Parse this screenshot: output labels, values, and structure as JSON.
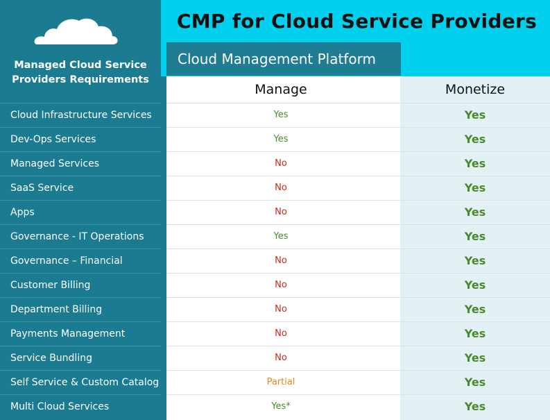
{
  "title": "CMP for Cloud Service Providers",
  "platform_label": "Cloud Management Platform",
  "sidebar": {
    "heading_line1": "Managed Cloud Service",
    "heading_line2": "Providers Requirements"
  },
  "columns": {
    "manage": "Manage",
    "monetize": "Monetize"
  },
  "colors": {
    "yes": "#4a8a2a",
    "no": "#d0281c",
    "partial": "#e08a1e",
    "accent": "#00cfee",
    "sidebar": "#1b7b91"
  },
  "rows": [
    {
      "requirement": "Cloud Infrastructure Services",
      "manage": "Yes",
      "monetize": "Yes"
    },
    {
      "requirement": "Dev-Ops Services",
      "manage": "Yes",
      "monetize": "Yes"
    },
    {
      "requirement": "Managed Services",
      "manage": "No",
      "monetize": "Yes"
    },
    {
      "requirement": "SaaS Service",
      "manage": "No",
      "monetize": "Yes"
    },
    {
      "requirement": "Apps",
      "manage": "No",
      "monetize": "Yes"
    },
    {
      "requirement": "Governance - IT Operations",
      "manage": "Yes",
      "monetize": "Yes"
    },
    {
      "requirement": "Governance – Financial",
      "manage": "No",
      "monetize": "Yes"
    },
    {
      "requirement": "Customer Billing",
      "manage": "No",
      "monetize": "Yes"
    },
    {
      "requirement": "Department Billing",
      "manage": "No",
      "monetize": "Yes"
    },
    {
      "requirement": "Payments Management",
      "manage": "No",
      "monetize": "Yes"
    },
    {
      "requirement": "Service Bundling",
      "manage": "No",
      "monetize": "Yes"
    },
    {
      "requirement": "Self Service & Custom Catalog",
      "manage": "Partial",
      "monetize": "Yes"
    },
    {
      "requirement": "Multi Cloud Services",
      "manage": "Yes*",
      "monetize": "Yes"
    }
  ]
}
